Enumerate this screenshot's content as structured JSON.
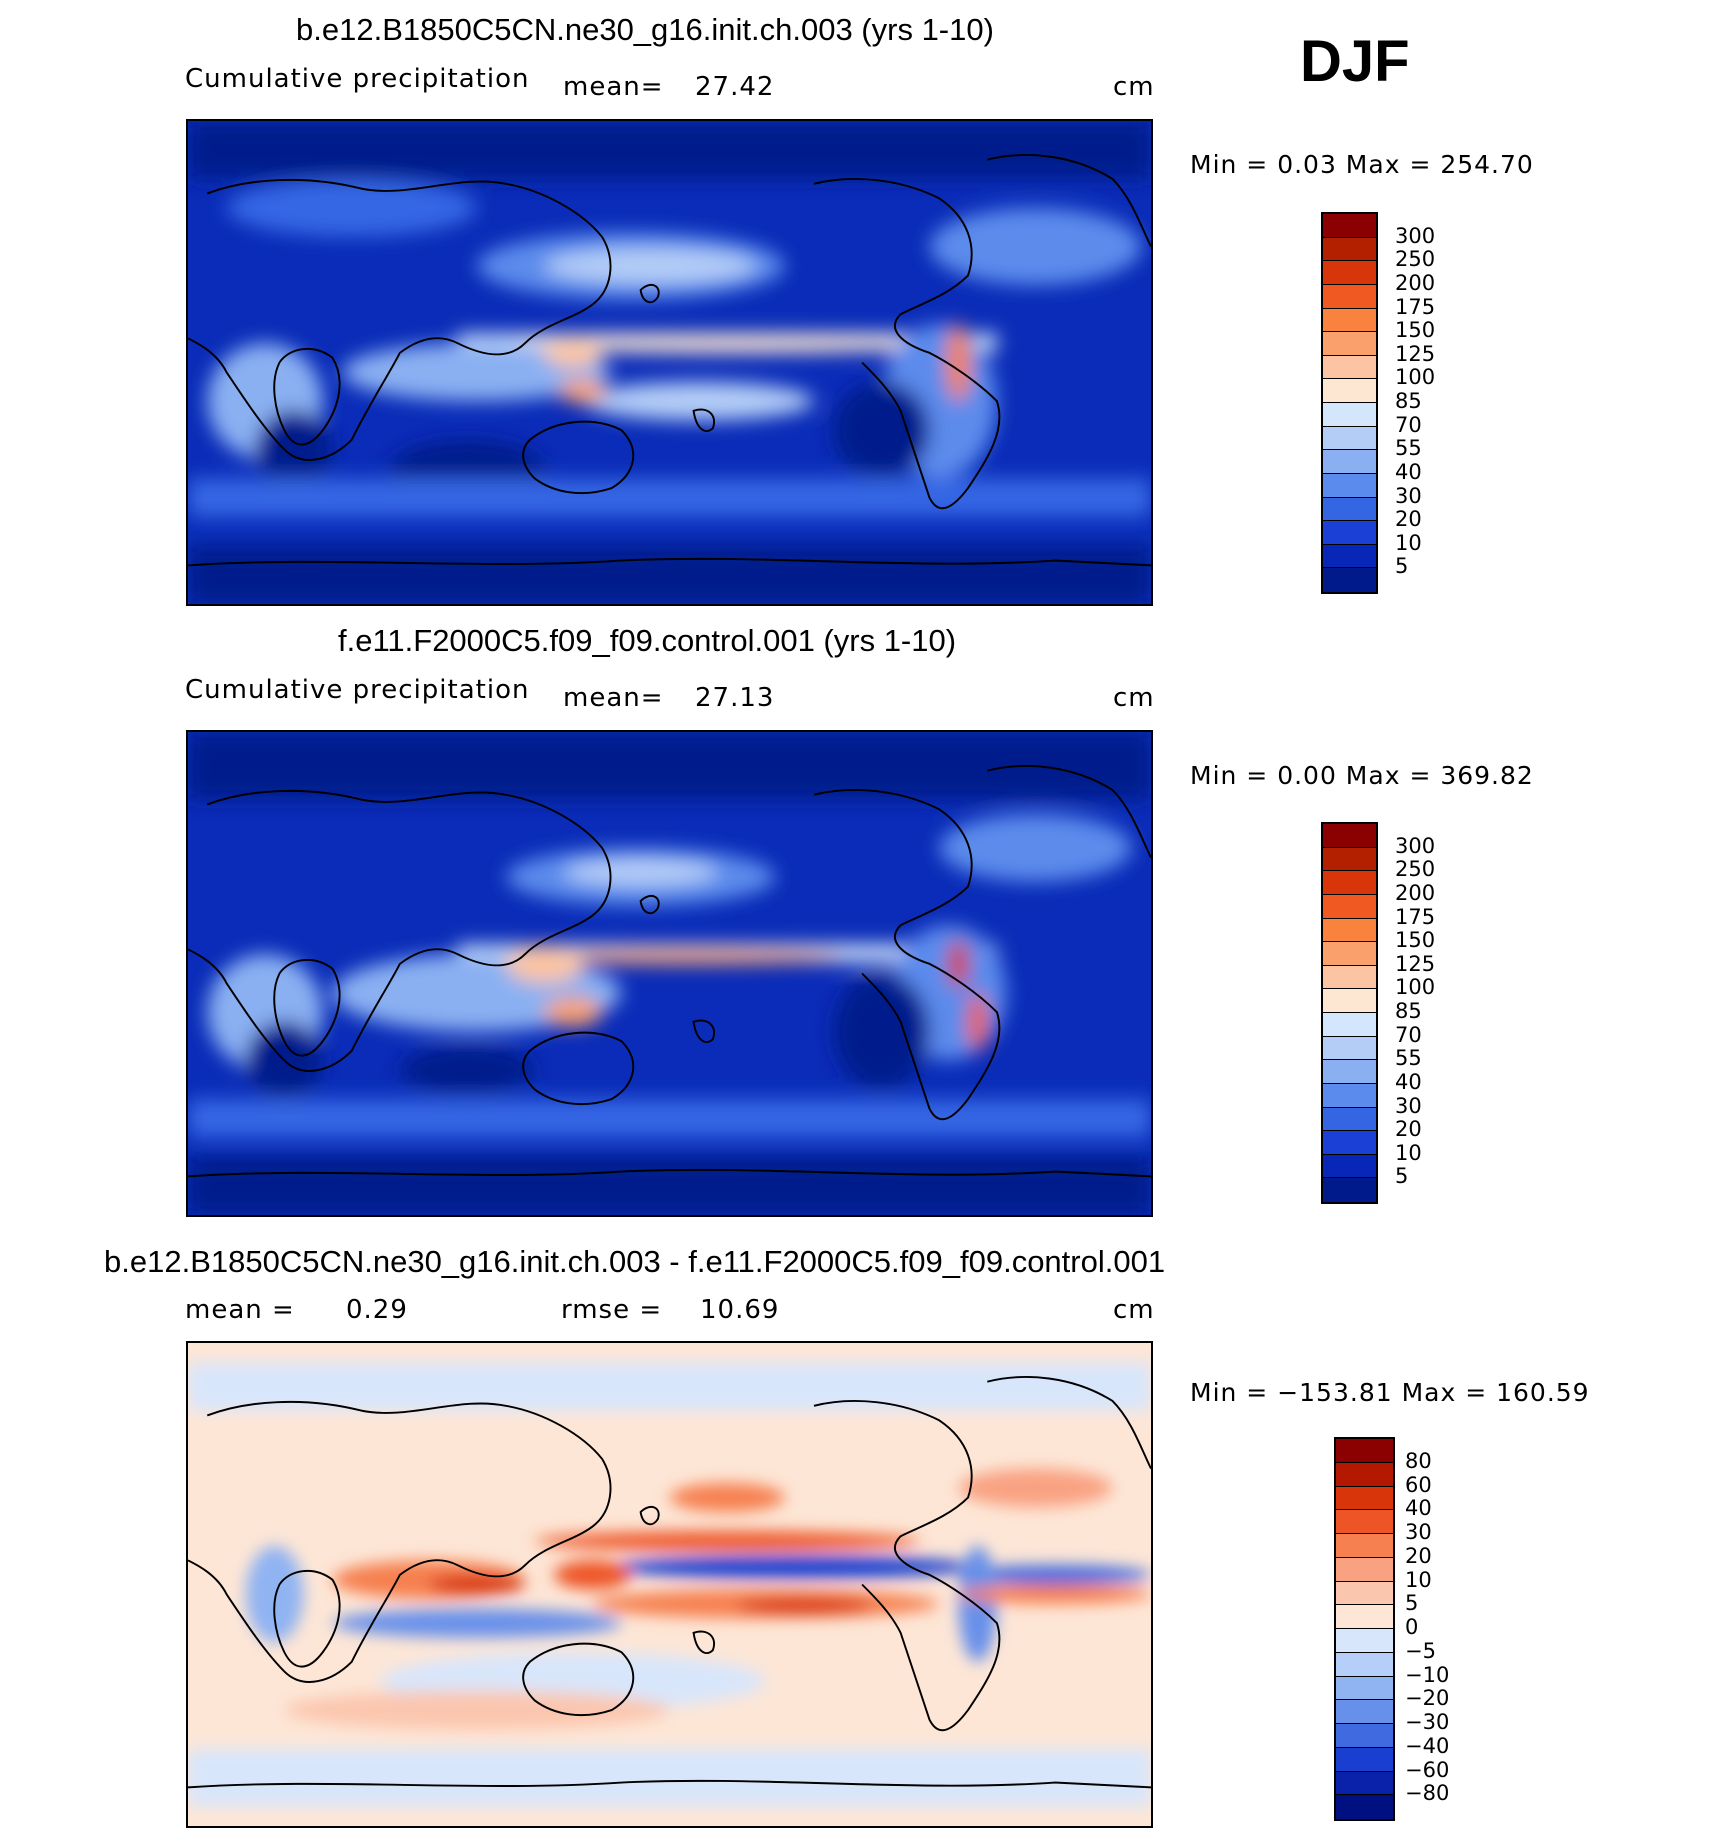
{
  "season_label": "DJF",
  "panels": [
    {
      "id": "model",
      "title": "b.e12.B1850C5CN.ne30_g16.init.ch.003 (yrs 1-10)",
      "left_label": "Cumulative precipitation",
      "mid_label": "mean=",
      "mid_value": "27.42",
      "units": "cm",
      "minmax": "Min =    0.03  Max  =  254.70",
      "colorbar_labels": [
        "300",
        "250",
        "200",
        "175",
        "150",
        "125",
        "100",
        "85",
        "70",
        "55",
        "40",
        "30",
        "20",
        "10",
        "5"
      ],
      "colorbar_colors": [
        "#8b0000",
        "#b22000",
        "#d8360a",
        "#f05a22",
        "#f8823e",
        "#faa06c",
        "#fcc4a2",
        "#fde6d2",
        "#d4e6fb",
        "#b4cdf7",
        "#8ab0f2",
        "#5b8bec",
        "#3466e4",
        "#1a40d6",
        "#0826b8",
        "#001a8c"
      ]
    },
    {
      "id": "obs",
      "title": "f.e11.F2000C5.f09_f09.control.001 (yrs 1-10)",
      "left_label": "Cumulative precipitation",
      "mid_label": "mean=",
      "mid_value": "27.13",
      "units": "cm",
      "minmax": "Min =    0.00  Max  =  369.82",
      "colorbar_labels": [
        "300",
        "250",
        "200",
        "175",
        "150",
        "125",
        "100",
        "85",
        "70",
        "55",
        "40",
        "30",
        "20",
        "10",
        "5"
      ],
      "colorbar_colors": [
        "#8b0000",
        "#b22000",
        "#d8360a",
        "#f05a22",
        "#f8823e",
        "#faa06c",
        "#fcc4a2",
        "#fde6d2",
        "#d4e6fb",
        "#b4cdf7",
        "#8ab0f2",
        "#5b8bec",
        "#3466e4",
        "#1a40d6",
        "#0826b8",
        "#001a8c"
      ]
    },
    {
      "id": "diff",
      "title": "b.e12.B1850C5CN.ne30_g16.init.ch.003 - f.e11.F2000C5.f09_f09.control.001",
      "left_label": "mean =",
      "left_value": "0.29",
      "mid_label": "rmse =",
      "mid_value": "10.69",
      "units": "cm",
      "minmax": "Min = −153.81  Max  =  160.59",
      "colorbar_labels": [
        "80",
        "60",
        "40",
        "30",
        "20",
        "10",
        "5",
        "0",
        "−5",
        "−10",
        "−20",
        "−30",
        "−40",
        "−60",
        "−80"
      ],
      "colorbar_colors": [
        "#8b0000",
        "#b51800",
        "#d8360a",
        "#ee5526",
        "#f68050",
        "#f9a282",
        "#fbc6ae",
        "#fde6d6",
        "#d8e6fb",
        "#b6cff8",
        "#90b3f2",
        "#6790ea",
        "#3f6ae0",
        "#1a3fd0",
        "#0a22aa",
        "#001080"
      ]
    }
  ]
}
